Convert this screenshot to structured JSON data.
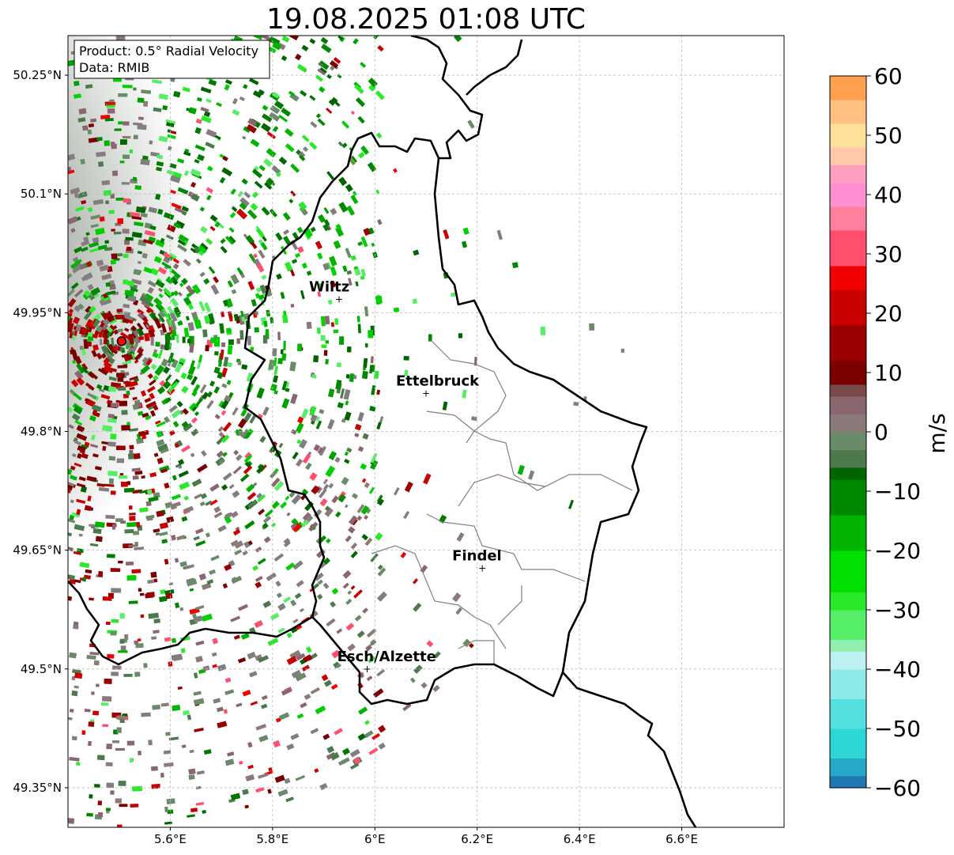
{
  "title": "19.08.2025 01:08 UTC",
  "info_box": {
    "product": "Product: 0.5° Radial Velocity",
    "data": "Data: RMIB"
  },
  "map": {
    "lon_range": [
      5.4,
      6.8
    ],
    "lat_range": [
      49.3,
      50.3
    ],
    "x_ticks": [
      {
        "value": 5.6,
        "label": "5.6°E"
      },
      {
        "value": 5.8,
        "label": "5.8°E"
      },
      {
        "value": 6.0,
        "label": "6°E"
      },
      {
        "value": 6.2,
        "label": "6.2°E"
      },
      {
        "value": 6.4,
        "label": "6.4°E"
      },
      {
        "value": 6.6,
        "label": "6.6°E"
      }
    ],
    "y_ticks": [
      {
        "value": 50.25,
        "label": "50.25°N"
      },
      {
        "value": 50.1,
        "label": "50.1°N"
      },
      {
        "value": 49.95,
        "label": "49.95°N"
      },
      {
        "value": 49.8,
        "label": "49.8°N"
      },
      {
        "value": 49.65,
        "label": "49.65°N"
      },
      {
        "value": 49.5,
        "label": "49.5°N"
      },
      {
        "value": 49.35,
        "label": "49.35°N"
      }
    ],
    "gridlines": true,
    "radar_site": {
      "lon": 5.505,
      "lat": 49.914
    },
    "cities": [
      {
        "name": "Wiltz",
        "lon": 5.93,
        "lat": 49.967
      },
      {
        "name": "Ettelbruck",
        "lon": 6.1,
        "lat": 49.848
      },
      {
        "name": "Findel",
        "lon": 6.21,
        "lat": 49.627
      },
      {
        "name": "Esch/Alzette",
        "lon": 5.985,
        "lat": 49.5
      }
    ]
  },
  "colorbar": {
    "label": "m/s",
    "min": -60,
    "max": 60,
    "ticks": [
      {
        "value": 60,
        "label": "60"
      },
      {
        "value": 50,
        "label": "50"
      },
      {
        "value": 40,
        "label": "40"
      },
      {
        "value": 30,
        "label": "30"
      },
      {
        "value": 20,
        "label": "20"
      },
      {
        "value": 10,
        "label": "10"
      },
      {
        "value": 0,
        "label": "0"
      },
      {
        "value": -10,
        "label": "−10"
      },
      {
        "value": -20,
        "label": "−20"
      },
      {
        "value": -30,
        "label": "−30"
      },
      {
        "value": -40,
        "label": "−40"
      },
      {
        "value": -50,
        "label": "−50"
      },
      {
        "value": -60,
        "label": "−60"
      }
    ],
    "bands": [
      {
        "from": -60,
        "to": -58,
        "color": "#1f77b4"
      },
      {
        "from": -58,
        "to": -55,
        "color": "#26a9c9"
      },
      {
        "from": -55,
        "to": -50,
        "color": "#2fd6d6"
      },
      {
        "from": -50,
        "to": -45,
        "color": "#55e0e0"
      },
      {
        "from": -45,
        "to": -40,
        "color": "#8ee9e9"
      },
      {
        "from": -40,
        "to": -37,
        "color": "#bff0f0"
      },
      {
        "from": -37,
        "to": -35,
        "color": "#90eeb0"
      },
      {
        "from": -35,
        "to": -30,
        "color": "#55ee66"
      },
      {
        "from": -30,
        "to": -27,
        "color": "#2ae82a"
      },
      {
        "from": -27,
        "to": -20,
        "color": "#00e000"
      },
      {
        "from": -20,
        "to": -14,
        "color": "#00b400"
      },
      {
        "from": -14,
        "to": -8,
        "color": "#008800"
      },
      {
        "from": -8,
        "to": -6,
        "color": "#006400"
      },
      {
        "from": -6,
        "to": -3,
        "color": "#4d7a4d"
      },
      {
        "from": -3,
        "to": 0,
        "color": "#6a8a6a"
      },
      {
        "from": 0,
        "to": 3,
        "color": "#8a7a7a"
      },
      {
        "from": 3,
        "to": 6,
        "color": "#8a6670"
      },
      {
        "from": 6,
        "to": 8,
        "color": "#7a4a4a"
      },
      {
        "from": 8,
        "to": 12,
        "color": "#7a0000"
      },
      {
        "from": 12,
        "to": 18,
        "color": "#9a0000"
      },
      {
        "from": 18,
        "to": 24,
        "color": "#c80000"
      },
      {
        "from": 24,
        "to": 28,
        "color": "#f00000"
      },
      {
        "from": 28,
        "to": 34,
        "color": "#ff4f6f"
      },
      {
        "from": 34,
        "to": 38,
        "color": "#ff7f9f"
      },
      {
        "from": 38,
        "to": 42,
        "color": "#ff8fd0"
      },
      {
        "from": 42,
        "to": 45,
        "color": "#ffa0c0"
      },
      {
        "from": 45,
        "to": 48,
        "color": "#ffc8a8"
      },
      {
        "from": 48,
        "to": 52,
        "color": "#ffe09a"
      },
      {
        "from": 52,
        "to": 56,
        "color": "#ffc080"
      },
      {
        "from": 56,
        "to": 60,
        "color": "#ffa050"
      }
    ]
  },
  "colors": {
    "border": "#000000",
    "canton_border": "#808080",
    "radar_marker": "#ff0000",
    "grid": "#bbbbbb"
  }
}
